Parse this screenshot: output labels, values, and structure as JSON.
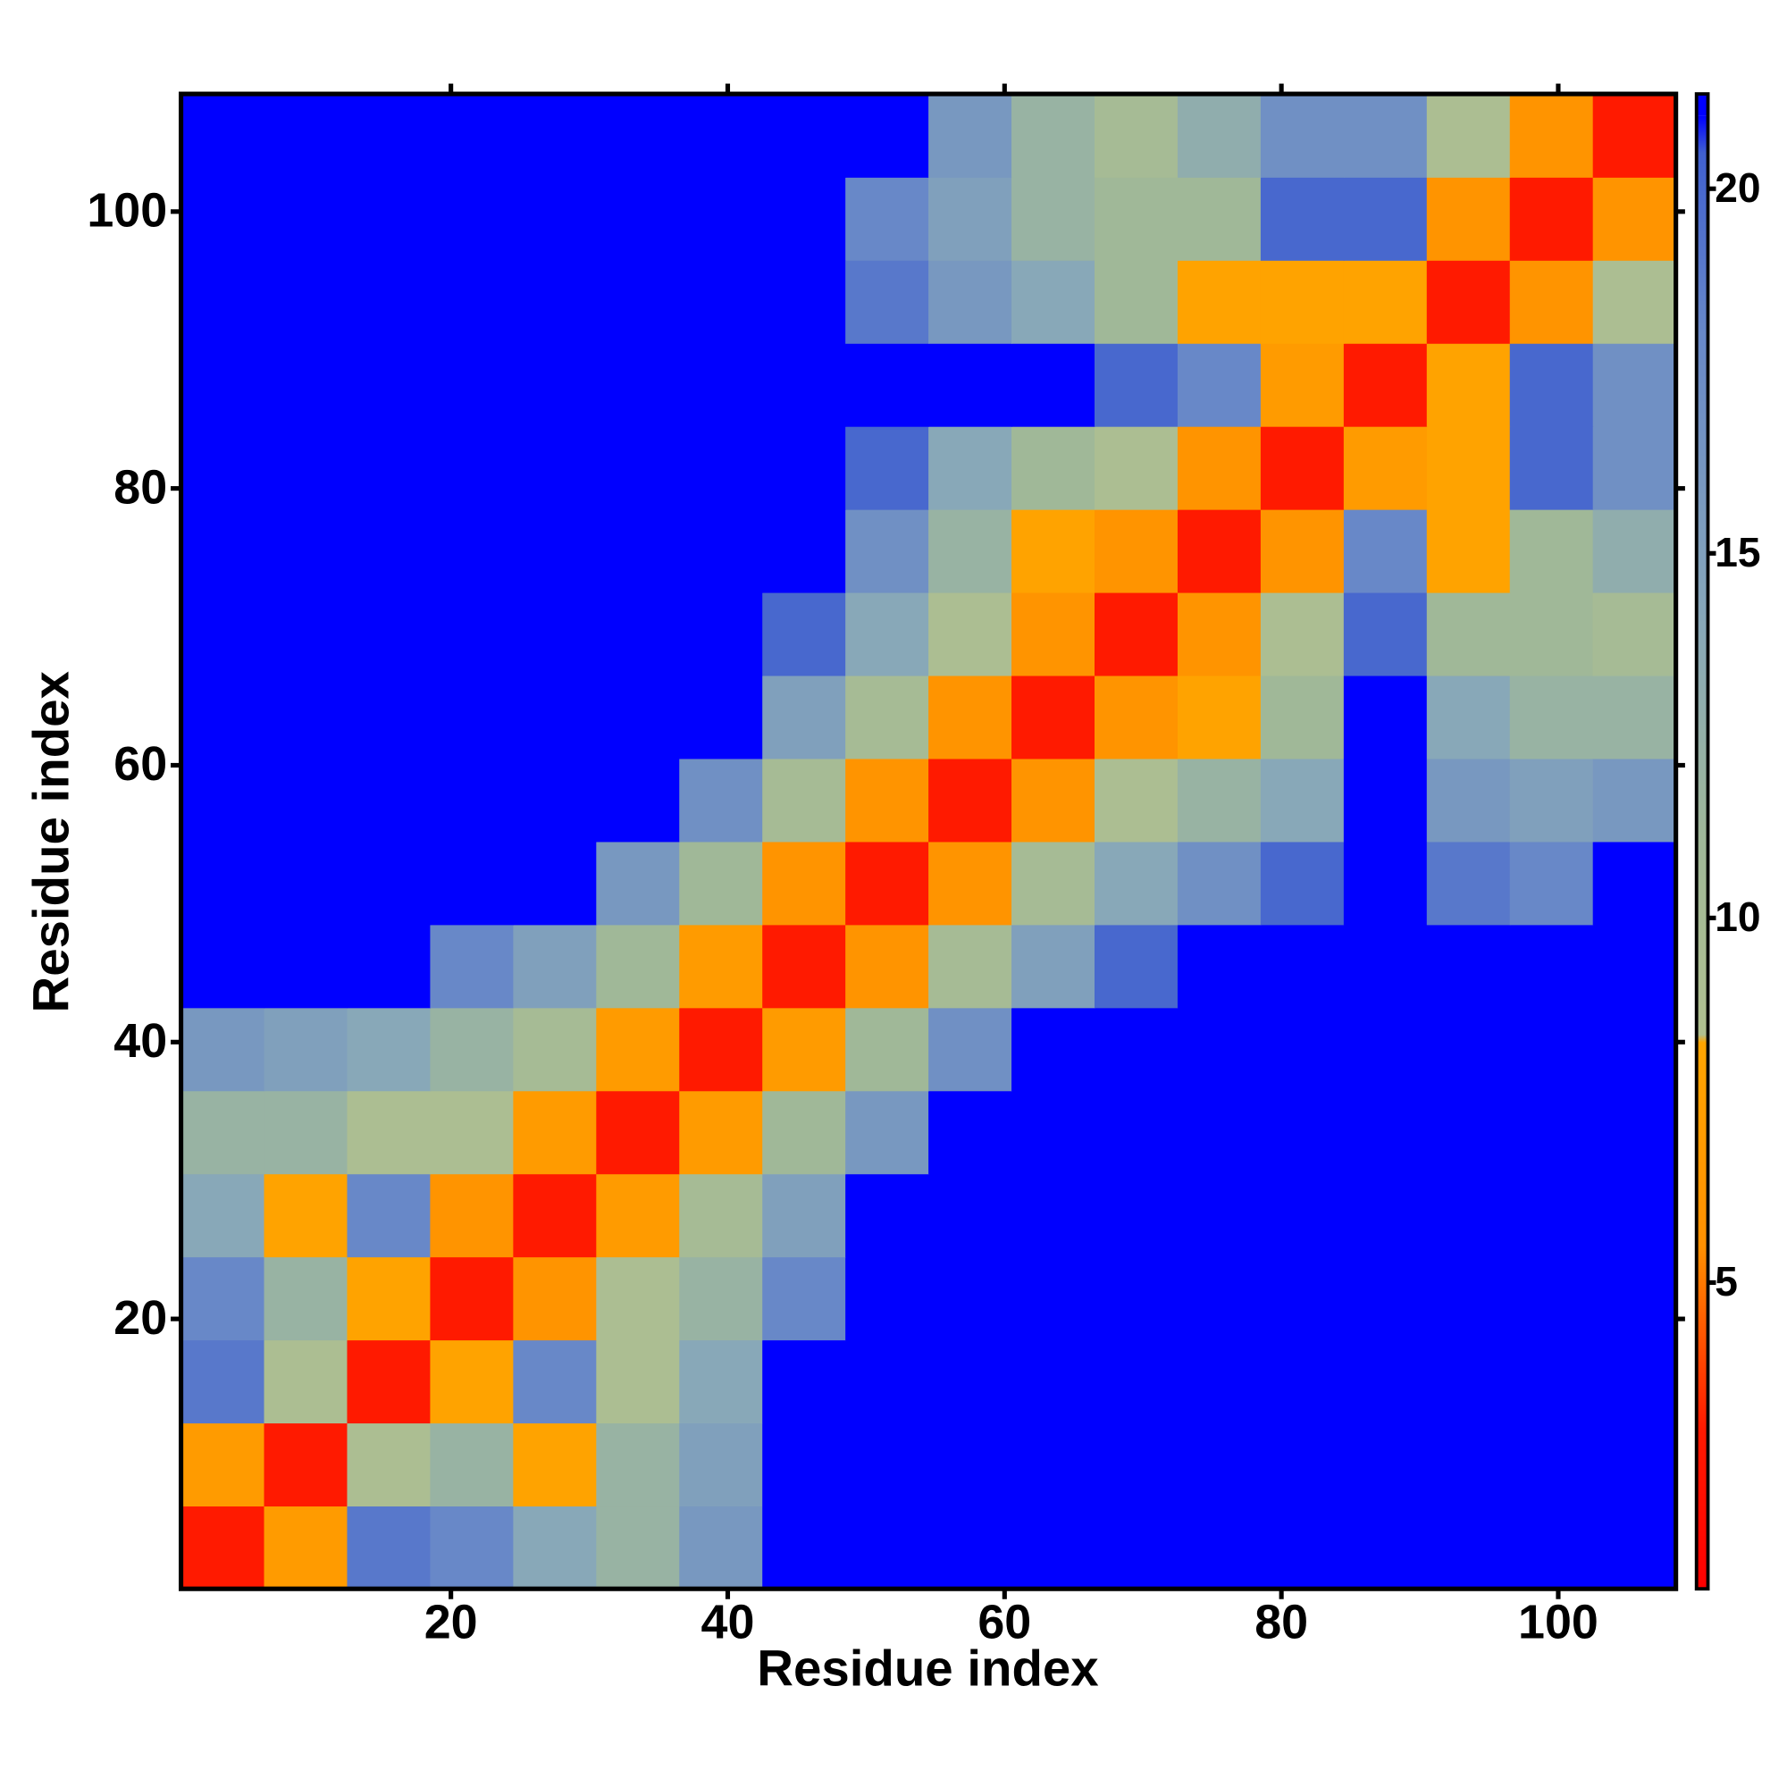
{
  "chart_data": {
    "type": "heatmap",
    "xlabel": "Residue index",
    "ylabel": "Residue index",
    "x": [
      3.5,
      9.5,
      15.5,
      21.5,
      27.5,
      33.5,
      39.5,
      45.5,
      51.5,
      57.5,
      63.5,
      69.5,
      75.5,
      81.5,
      87.5,
      93.5,
      99.5,
      105.5
    ],
    "y": [
      3.5,
      9.5,
      15.5,
      21.5,
      27.5,
      33.5,
      39.5,
      45.5,
      51.5,
      57.5,
      63.5,
      69.5,
      75.5,
      81.5,
      87.5,
      93.5,
      99.5,
      105.5
    ],
    "values": [
      [
        3,
        7,
        19,
        18,
        14,
        12,
        16,
        25,
        25,
        25,
        25,
        25,
        25,
        25,
        25,
        25,
        25,
        25
      ],
      [
        7,
        3,
        9,
        12,
        8,
        12,
        15,
        22,
        25,
        25,
        25,
        25,
        25,
        25,
        25,
        25,
        25,
        25
      ],
      [
        19,
        9,
        3,
        8,
        18,
        9,
        14,
        21,
        25,
        25,
        25,
        25,
        25,
        25,
        25,
        25,
        25,
        25
      ],
      [
        18,
        12,
        8,
        3,
        6,
        9,
        12,
        18,
        23,
        25,
        25,
        25,
        25,
        25,
        25,
        25,
        25,
        25
      ],
      [
        14,
        8,
        18,
        6,
        3,
        7,
        10,
        15,
        21,
        25,
        25,
        25,
        25,
        25,
        25,
        25,
        25,
        25
      ],
      [
        12,
        12,
        9,
        9,
        7,
        3,
        7,
        11,
        16,
        22,
        25,
        25,
        25,
        25,
        25,
        25,
        25,
        25
      ],
      [
        16,
        15,
        14,
        12,
        10,
        7,
        3,
        7,
        11,
        17,
        22,
        25,
        25,
        25,
        25,
        25,
        25,
        25
      ],
      [
        25,
        22,
        21,
        18,
        15,
        11,
        7,
        3,
        6,
        10,
        15,
        20,
        24,
        25,
        25,
        22,
        22,
        25
      ],
      [
        25,
        25,
        25,
        23,
        21,
        16,
        11,
        6,
        3,
        6,
        10,
        14,
        17,
        20,
        23,
        19,
        18,
        22
      ],
      [
        25,
        25,
        25,
        25,
        25,
        22,
        17,
        10,
        6,
        3,
        6,
        9,
        12,
        14,
        22,
        16,
        15,
        16
      ],
      [
        25,
        25,
        25,
        25,
        25,
        25,
        22,
        15,
        10,
        6,
        3,
        6,
        8,
        11,
        21,
        14,
        12,
        12
      ],
      [
        25,
        25,
        25,
        25,
        25,
        25,
        25,
        20,
        14,
        9,
        6,
        3,
        6,
        9,
        20,
        11,
        11,
        10
      ],
      [
        25,
        25,
        25,
        25,
        25,
        25,
        25,
        24,
        17,
        12,
        8,
        6,
        3,
        6,
        18,
        8,
        11,
        13
      ],
      [
        25,
        25,
        25,
        25,
        25,
        25,
        25,
        25,
        20,
        14,
        11,
        9,
        6,
        3,
        7,
        8,
        20,
        17
      ],
      [
        25,
        25,
        25,
        25,
        25,
        25,
        25,
        25,
        23,
        22,
        21,
        20,
        18,
        7,
        3,
        8,
        20,
        17
      ],
      [
        25,
        25,
        25,
        25,
        25,
        25,
        25,
        22,
        19,
        16,
        14,
        11,
        8,
        8,
        8,
        3,
        6,
        9
      ],
      [
        25,
        25,
        25,
        25,
        25,
        25,
        25,
        22,
        18,
        15,
        12,
        11,
        11,
        20,
        20,
        6,
        3,
        6
      ],
      [
        25,
        25,
        25,
        25,
        25,
        25,
        25,
        25,
        22,
        16,
        12,
        10,
        13,
        17,
        17,
        9,
        6,
        3
      ]
    ],
    "xlim": [
      0.5,
      108.5
    ],
    "ylim": [
      0.5,
      108.5
    ],
    "xticks": [
      20,
      40,
      60,
      80,
      100
    ],
    "yticks": [
      20,
      40,
      60,
      80,
      100
    ],
    "colorbar": {
      "lim": [
        0.8,
        21.3
      ],
      "ticks": [
        5,
        10,
        15,
        20
      ],
      "stops": [
        {
          "value": 0.8,
          "color": "#ff0000"
        },
        {
          "value": 3,
          "color": "#ff1a00"
        },
        {
          "value": 4.5,
          "color": "#ff6000"
        },
        {
          "value": 5.5,
          "color": "#ff9000"
        },
        {
          "value": 8.3,
          "color": "#ffa500"
        },
        {
          "value": 8.4,
          "color": "#b0c090"
        },
        {
          "value": 11,
          "color": "#a0b898"
        },
        {
          "value": 14,
          "color": "#88a8b8"
        },
        {
          "value": 18,
          "color": "#6888c8"
        },
        {
          "value": 20.5,
          "color": "#4060d0"
        },
        {
          "value": 21,
          "color": "#0000ff"
        }
      ]
    }
  }
}
